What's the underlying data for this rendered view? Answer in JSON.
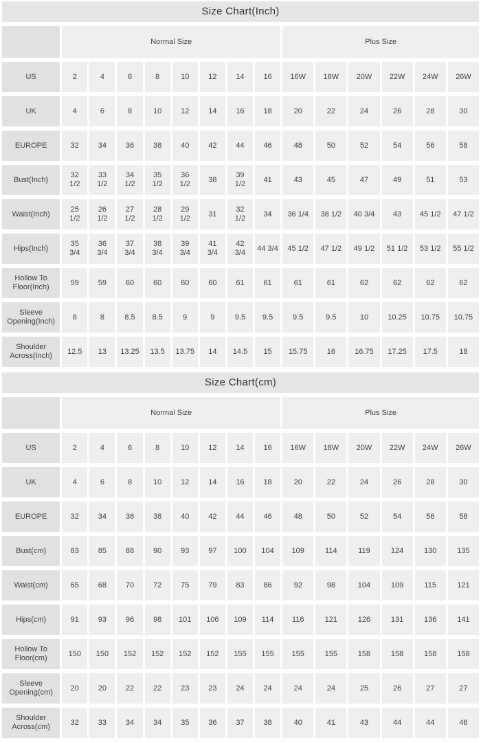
{
  "colors": {
    "page_background": "#ffffff",
    "title_bar_bg": "#e7e6e6",
    "label_cell_bg": "#e2e1e1",
    "data_cell_bg": "#f0efef",
    "cell_gap": "#ffffff",
    "text": "#3e3e3e"
  },
  "chart_data": [
    {
      "type": "table",
      "title": "Size Chart(Inch)",
      "group_headers": [
        {
          "label": "Normal Size",
          "span": 8
        },
        {
          "label": "Plus Size",
          "span": 6
        }
      ],
      "rows": [
        {
          "label": "US",
          "values": [
            "2",
            "4",
            "6",
            "8",
            "10",
            "12",
            "14",
            "16",
            "16W",
            "18W",
            "20W",
            "22W",
            "24W",
            "26W"
          ]
        },
        {
          "label": "UK",
          "values": [
            "4",
            "6",
            "8",
            "10",
            "12",
            "14",
            "16",
            "18",
            "20",
            "22",
            "24",
            "26",
            "28",
            "30"
          ]
        },
        {
          "label": "EUROPE",
          "values": [
            "32",
            "34",
            "36",
            "38",
            "40",
            "42",
            "44",
            "46",
            "48",
            "50",
            "52",
            "54",
            "56",
            "58"
          ]
        },
        {
          "label": "Bust(Inch)",
          "values": [
            "32\n1/2",
            "33\n1/2",
            "34\n1/2",
            "35\n1/2",
            "36\n1/2",
            "38",
            "39\n1/2",
            "41",
            "43",
            "45",
            "47",
            "49",
            "51",
            "53"
          ]
        },
        {
          "label": "Waist(Inch)",
          "values": [
            "25\n1/2",
            "26\n1/2",
            "27\n1/2",
            "28\n1/2",
            "29\n1/2",
            "31",
            "32\n1/2",
            "34",
            "36 1/4",
            "38 1/2",
            "40 3/4",
            "43",
            "45 1/2",
            "47 1/2"
          ]
        },
        {
          "label": "Hips(Inch)",
          "values": [
            "35\n3/4",
            "36\n3/4",
            "37\n3/4",
            "38\n3/4",
            "39\n3/4",
            "41\n3/4",
            "42\n3/4",
            "44 3/4",
            "45 1/2",
            "47 1/2",
            "49 1/2",
            "51 1/2",
            "53 1/2",
            "55 1/2"
          ]
        },
        {
          "label": "Hollow To\nFloor(Inch)",
          "values": [
            "59",
            "59",
            "60",
            "60",
            "60",
            "60",
            "61",
            "61",
            "61",
            "61",
            "62",
            "62",
            "62",
            "62"
          ]
        },
        {
          "label": "Sleeve\nOpening(Inch)",
          "values": [
            "8",
            "8",
            "8.5",
            "8.5",
            "9",
            "9",
            "9.5",
            "9.5",
            "9.5",
            "9.5",
            "10",
            "10.25",
            "10.75",
            "10.75"
          ]
        },
        {
          "label": "Shoulder\nAcross(Inch)",
          "values": [
            "12.5",
            "13",
            "13.25",
            "13.5",
            "13.75",
            "14",
            "14.5",
            "15",
            "15.75",
            "16",
            "16.75",
            "17.25",
            "17.5",
            "18"
          ]
        }
      ]
    },
    {
      "type": "table",
      "title": "Size Chart(cm)",
      "group_headers": [
        {
          "label": "Normal Size",
          "span": 8
        },
        {
          "label": "Plus Size",
          "span": 6
        }
      ],
      "rows": [
        {
          "label": "US",
          "values": [
            "2",
            "4",
            "6",
            "8",
            "10",
            "12",
            "14",
            "16",
            "16W",
            "18W",
            "20W",
            "22W",
            "24W",
            "26W"
          ]
        },
        {
          "label": "UK",
          "values": [
            "4",
            "6",
            "8",
            "10",
            "12",
            "14",
            "16",
            "18",
            "20",
            "22",
            "24",
            "26",
            "28",
            "30"
          ]
        },
        {
          "label": "EUROPE",
          "values": [
            "32",
            "34",
            "36",
            "38",
            "40",
            "42",
            "44",
            "46",
            "48",
            "50",
            "52",
            "54",
            "56",
            "58"
          ]
        },
        {
          "label": "Bust(cm)",
          "values": [
            "83",
            "85",
            "88",
            "90",
            "93",
            "97",
            "100",
            "104",
            "109",
            "114",
            "119",
            "124",
            "130",
            "135"
          ]
        },
        {
          "label": "Waist(cm)",
          "values": [
            "65",
            "68",
            "70",
            "72",
            "75",
            "79",
            "83",
            "86",
            "92",
            "98",
            "104",
            "109",
            "115",
            "121"
          ]
        },
        {
          "label": "Hips(cm)",
          "values": [
            "91",
            "93",
            "96",
            "98",
            "101",
            "106",
            "109",
            "114",
            "116",
            "121",
            "126",
            "131",
            "136",
            "141"
          ]
        },
        {
          "label": "Hollow To\nFloor(cm)",
          "values": [
            "150",
            "150",
            "152",
            "152",
            "152",
            "152",
            "155",
            "155",
            "155",
            "155",
            "158",
            "158",
            "158",
            "158"
          ]
        },
        {
          "label": "Sleeve\nOpening(cm)",
          "values": [
            "20",
            "20",
            "22",
            "22",
            "23",
            "23",
            "24",
            "24",
            "24",
            "24",
            "25",
            "26",
            "27",
            "27"
          ]
        },
        {
          "label": "Shoulder\nAcross(cm)",
          "values": [
            "32",
            "33",
            "34",
            "34",
            "35",
            "36",
            "37",
            "38",
            "40",
            "41",
            "43",
            "44",
            "44",
            "46"
          ]
        }
      ]
    }
  ]
}
